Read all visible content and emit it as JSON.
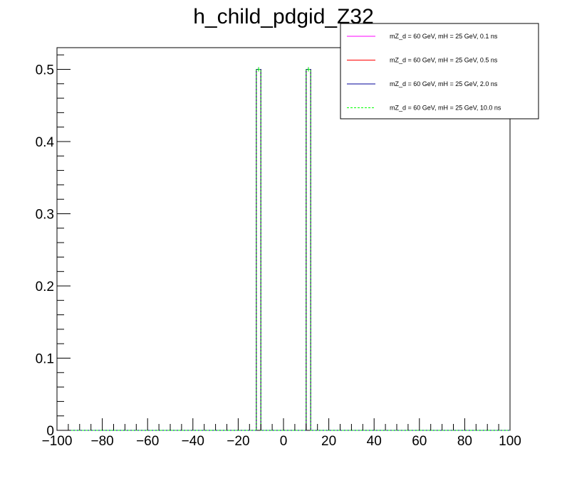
{
  "chart_data": {
    "type": "histogram",
    "title": "h_child_pdgid_Z32",
    "xlabel": "",
    "ylabel": "",
    "xlim": [
      -100,
      100
    ],
    "ylim": [
      0,
      0.53
    ],
    "bin_width": 2,
    "x_ticks": [
      -100,
      -80,
      -60,
      -40,
      -20,
      0,
      20,
      40,
      60,
      80,
      100
    ],
    "x_tick_labels": [
      "−100",
      "−80",
      "−60",
      "−40",
      "−20",
      "0",
      "20",
      "40",
      "60",
      "80",
      "100"
    ],
    "y_ticks": [
      0,
      0.1,
      0.2,
      0.3,
      0.4,
      0.5
    ],
    "y_tick_labels": [
      "0",
      "0.1",
      "0.2",
      "0.3",
      "0.4",
      "0.5"
    ],
    "grid": false,
    "legend_position": "top-right",
    "series": [
      {
        "name": "mZ_d = 60 GeV, mH = 25 GeV, 0.1 ns",
        "color": "#ff00ff",
        "dashed": false,
        "bins": [
          {
            "x": -11,
            "y": 0.5
          },
          {
            "x": 11,
            "y": 0.5
          }
        ]
      },
      {
        "name": "mZ_d = 60 GeV, mH = 25 GeV, 0.5 ns",
        "color": "#ff0000",
        "dashed": false,
        "bins": [
          {
            "x": -11,
            "y": 0.5
          },
          {
            "x": 11,
            "y": 0.5
          }
        ]
      },
      {
        "name": "mZ_d = 60 GeV, mH = 25 GeV, 2.0 ns",
        "color": "#000099",
        "dashed": false,
        "bins": [
          {
            "x": -11,
            "y": 0.5
          },
          {
            "x": 11,
            "y": 0.5
          }
        ]
      },
      {
        "name": "mZ_d = 60 GeV, mH = 25 GeV, 10.0 ns",
        "color": "#00ff00",
        "dashed": true,
        "bins": [
          {
            "x": -11,
            "y": 0.5
          },
          {
            "x": 11,
            "y": 0.5
          }
        ]
      }
    ]
  }
}
